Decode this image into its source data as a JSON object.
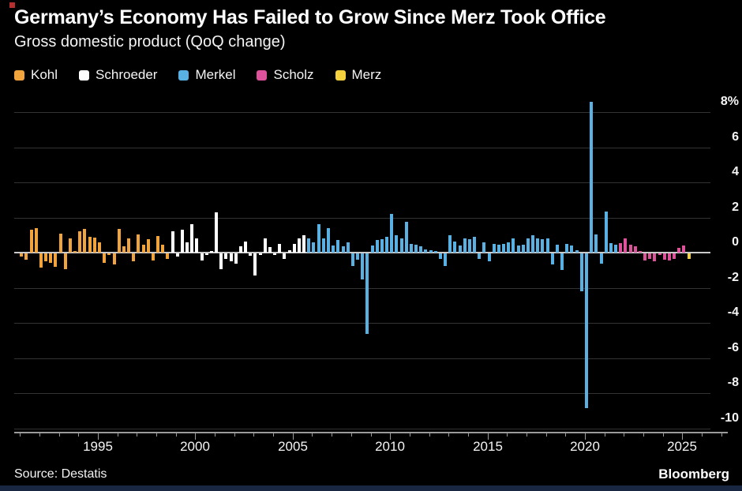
{
  "header": {
    "title": "Germany’s Economy Has Failed to Grow Since Merz Took Office",
    "subtitle": "Gross domestic product (QoQ change)"
  },
  "legend": {
    "items": [
      {
        "label": "Kohl",
        "color": "#F1A33C"
      },
      {
        "label": "Schroeder",
        "color": "#FFFFFF"
      },
      {
        "label": "Merkel",
        "color": "#58B0E3"
      },
      {
        "label": "Scholz",
        "color": "#DE519B"
      },
      {
        "label": "Merz",
        "color": "#F5D13D"
      }
    ]
  },
  "footer": {
    "source": "Source: Destatis",
    "brand": "Bloomberg"
  },
  "chart_data": {
    "type": "bar",
    "title": "Germany’s Economy Has Failed to Grow Since Merz Took Office",
    "subtitle": "Gross domestic product (QoQ change)",
    "unit": "%",
    "frequency": "quarterly",
    "x_range": {
      "first_quarter": "1991Q1",
      "last_quarter": "2025Q2"
    },
    "x_axis": {
      "labeled_years": [
        1995,
        2000,
        2005,
        2010,
        2015,
        2020,
        2025
      ],
      "minor_tick_years_from": 1991,
      "minor_tick_years_to": 2027
    },
    "y_axis": {
      "tick_values": [
        8,
        6,
        4,
        2,
        0,
        -2,
        -4,
        -6,
        -8,
        -10
      ],
      "tick_labels": [
        "8%",
        "6",
        "4",
        "2",
        "0",
        "-2",
        "-4",
        "-6",
        "-8",
        "-10"
      ],
      "ylim": [
        -10.5,
        9
      ],
      "grid": true
    },
    "legend_position": "top-left",
    "series": [
      {
        "name": "Kohl",
        "color": "#F1A33C",
        "start": "1991Q1",
        "values": [
          -0.2,
          -0.35,
          1.3,
          1.4,
          -0.8,
          -0.45,
          -0.55,
          -0.75,
          1.1,
          -0.9,
          0.8,
          0.1,
          1.2,
          1.35,
          0.9,
          0.85,
          0.6,
          -0.55,
          -0.1,
          -0.65,
          1.35,
          0.35,
          0.8,
          -0.45,
          1.05,
          0.45,
          0.75,
          -0.4,
          0.95,
          0.45,
          -0.3
        ]
      },
      {
        "name": "Schroeder",
        "color": "#FFFFFF",
        "start": "1998Q4",
        "values": [
          1.2,
          -0.2,
          1.3,
          0.6,
          1.6,
          0.8,
          -0.4,
          -0.1,
          0.1,
          2.3,
          -0.9,
          -0.3,
          -0.45,
          -0.6,
          0.35,
          0.65,
          -0.15,
          -1.25,
          -0.1,
          0.8,
          0.3,
          -0.1,
          0.5,
          -0.3,
          0.15,
          0.5,
          0.8,
          1.0
        ]
      },
      {
        "name": "Merkel",
        "color": "#58B0E3",
        "start": "2005Q4",
        "values": [
          0.8,
          0.6,
          1.6,
          0.8,
          1.4,
          0.4,
          0.7,
          0.35,
          0.6,
          -0.7,
          -0.35,
          -1.5,
          -4.6,
          0.4,
          0.7,
          0.75,
          0.9,
          2.2,
          1.0,
          0.8,
          1.75,
          0.5,
          0.45,
          0.35,
          0.2,
          0.15,
          0.1,
          -0.3,
          -0.7,
          1.0,
          0.65,
          0.4,
          0.8,
          0.75,
          0.9,
          -0.3,
          0.6,
          -0.45,
          0.5,
          0.45,
          0.5,
          0.6,
          0.8,
          0.4,
          0.45,
          0.8,
          1.0,
          0.8,
          0.75,
          0.8,
          -0.65,
          0.45,
          -0.95,
          0.5,
          0.4,
          0.15,
          -2.15,
          -8.8,
          8.6,
          1.05,
          -0.6,
          2.35,
          0.55,
          0.45
        ]
      },
      {
        "name": "Scholz",
        "color": "#DE519B",
        "start": "2021Q4",
        "values": [
          0.55,
          0.8,
          0.45,
          0.35,
          0.1,
          -0.4,
          -0.3,
          -0.45,
          -0.1,
          -0.35,
          -0.4,
          -0.3,
          0.25,
          0.4
        ]
      },
      {
        "name": "Merz",
        "color": "#F5D13D",
        "start": "2025Q2",
        "values": [
          -0.3
        ]
      }
    ],
    "source": "Source: Destatis",
    "brand": "Bloomberg"
  }
}
